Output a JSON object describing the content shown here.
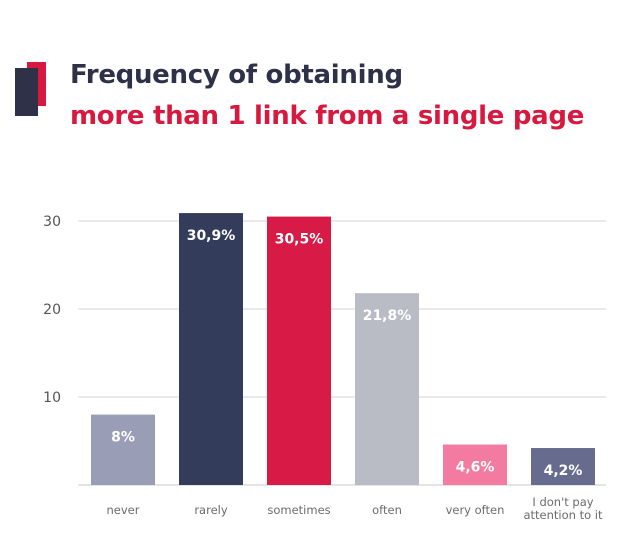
{
  "header": {
    "title_line1": "Frequency of obtaining",
    "title_line2": "more than 1 link from a single page"
  },
  "colors": {
    "dark": "#2e3147",
    "accent": "#d7193f"
  },
  "chart_data": {
    "type": "bar",
    "title": "Frequency of obtaining more than 1 link from a single page",
    "xlabel": "",
    "ylabel": "",
    "ylim": [
      0,
      30
    ],
    "yticks": [
      10,
      20,
      30
    ],
    "grid": true,
    "categories": [
      [
        "never"
      ],
      [
        "rarely"
      ],
      [
        "sometimes"
      ],
      [
        "often"
      ],
      [
        "very often"
      ],
      [
        "I don't pay",
        "attention to it"
      ]
    ],
    "values": [
      8,
      30.9,
      30.5,
      21.8,
      4.6,
      4.2
    ],
    "labels": [
      "8%",
      "30,9%",
      "30,5%",
      "21,8%",
      "4,6%",
      "4,2%"
    ],
    "bar_colors": [
      "#9a9db6",
      "#343c5c",
      "#d81a47",
      "#b9bcc5",
      "#f37aa0",
      "#676c8f"
    ]
  }
}
